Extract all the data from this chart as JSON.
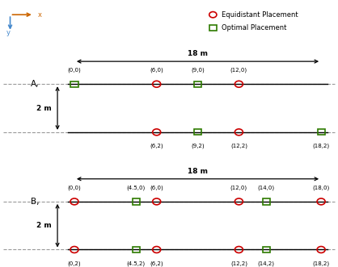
{
  "fig_width": 4.18,
  "fig_height": 3.31,
  "dpi": 100,
  "background": "#ffffff",
  "circle_color": "#cc0000",
  "square_color": "#2d7a00",
  "dash_color": "#999999",
  "label_fontsize": 5.0,
  "section_label_fontsize": 7.5,
  "dim_label_fontsize": 6.5,
  "legend_fontsize": 6.0,
  "section_A": {
    "label": "A,",
    "circles_row1": [
      6,
      12
    ],
    "squares_row1": [
      0,
      9
    ],
    "circles_row2": [
      6,
      12
    ],
    "squares_row2": [
      9,
      18
    ],
    "labels_row1_above": [
      [
        "(0,0)",
        0
      ],
      [
        "(6,0)",
        6
      ],
      [
        "(9,0)",
        9
      ],
      [
        "(12,0)",
        12
      ]
    ],
    "labels_row2_below": [
      [
        "(6,2)",
        6
      ],
      [
        "(9,2)",
        9
      ],
      [
        "(12,2)",
        12
      ],
      [
        "(18,2)",
        18
      ]
    ]
  },
  "section_B": {
    "label": "B,",
    "circles_row1": [
      0,
      6,
      12,
      18
    ],
    "squares_row1": [
      4.5,
      14
    ],
    "circles_row2": [
      0,
      6,
      12,
      18
    ],
    "squares_row2": [
      4.5,
      14
    ],
    "labels_row1_above": [
      [
        "(0,0)",
        0
      ],
      [
        "(4.5,0)",
        4.5
      ],
      [
        "(6,0)",
        6
      ],
      [
        "(12,0)",
        12
      ],
      [
        "(14,0)",
        14
      ],
      [
        "(18,0)",
        18
      ]
    ],
    "labels_row2_below": [
      [
        "(0,2)",
        0
      ],
      [
        "(4.5,2)",
        4.5
      ],
      [
        "(6,2)",
        6
      ],
      [
        "(12,2)",
        12
      ],
      [
        "(14,2)",
        14
      ],
      [
        "(18,2)",
        18
      ]
    ]
  }
}
